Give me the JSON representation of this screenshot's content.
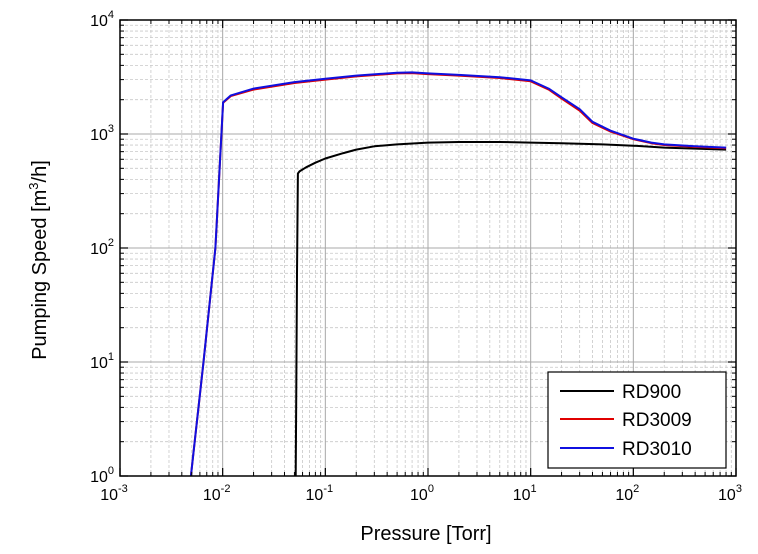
{
  "chart_data": {
    "type": "line",
    "xscale": "log",
    "yscale": "log",
    "xlabel": "Pressure [Torr]",
    "ylabel_parts": [
      "Pumping Speed [m",
      "3",
      "/h]"
    ],
    "xlim": [
      0.001,
      1000
    ],
    "ylim": [
      1,
      10000
    ],
    "x_ticks": [
      {
        "base": "10",
        "exp": "-3"
      },
      {
        "base": "10",
        "exp": "-2"
      },
      {
        "base": "10",
        "exp": "-1"
      },
      {
        "base": "10",
        "exp": "0"
      },
      {
        "base": "10",
        "exp": "1"
      },
      {
        "base": "10",
        "exp": "2"
      },
      {
        "base": "10",
        "exp": "3"
      }
    ],
    "y_ticks": [
      {
        "base": "10",
        "exp": "0"
      },
      {
        "base": "10",
        "exp": "1"
      },
      {
        "base": "10",
        "exp": "2"
      },
      {
        "base": "10",
        "exp": "3"
      },
      {
        "base": "10",
        "exp": "4"
      }
    ],
    "grid": true,
    "legend_position": "bottom-right",
    "series": [
      {
        "name": "RD900",
        "color": "#000000",
        "points": [
          [
            0.0515,
            1
          ],
          [
            0.0522,
            6
          ],
          [
            0.053,
            60
          ],
          [
            0.054,
            450
          ],
          [
            0.056,
            470
          ],
          [
            0.065,
            510
          ],
          [
            0.08,
            560
          ],
          [
            0.1,
            610
          ],
          [
            0.15,
            680
          ],
          [
            0.2,
            730
          ],
          [
            0.3,
            780
          ],
          [
            0.5,
            810
          ],
          [
            1,
            840
          ],
          [
            2,
            850
          ],
          [
            5,
            850
          ],
          [
            10,
            840
          ],
          [
            20,
            830
          ],
          [
            50,
            810
          ],
          [
            100,
            790
          ],
          [
            200,
            760
          ],
          [
            400,
            745
          ],
          [
            800,
            730
          ]
        ]
      },
      {
        "name": "RD3009",
        "color": "#e00000",
        "points": [
          [
            0.0049,
            1
          ],
          [
            0.0065,
            10
          ],
          [
            0.0085,
            100
          ],
          [
            0.0101,
            1880
          ],
          [
            0.012,
            2150
          ],
          [
            0.02,
            2450
          ],
          [
            0.05,
            2800
          ],
          [
            0.1,
            3000
          ],
          [
            0.2,
            3200
          ],
          [
            0.5,
            3400
          ],
          [
            0.7,
            3420
          ],
          [
            1,
            3350
          ],
          [
            2,
            3250
          ],
          [
            5,
            3100
          ],
          [
            10,
            2900
          ],
          [
            15,
            2450
          ],
          [
            20,
            2050
          ],
          [
            30,
            1600
          ],
          [
            40,
            1250
          ],
          [
            60,
            1050
          ],
          [
            100,
            900
          ],
          [
            150,
            830
          ],
          [
            200,
            800
          ],
          [
            400,
            770
          ],
          [
            800,
            750
          ]
        ]
      },
      {
        "name": "RD3010",
        "color": "#1010e0",
        "points": [
          [
            0.0049,
            1
          ],
          [
            0.0065,
            10
          ],
          [
            0.0085,
            100
          ],
          [
            0.0101,
            1900
          ],
          [
            0.012,
            2180
          ],
          [
            0.02,
            2500
          ],
          [
            0.05,
            2850
          ],
          [
            0.1,
            3050
          ],
          [
            0.2,
            3250
          ],
          [
            0.5,
            3450
          ],
          [
            0.7,
            3470
          ],
          [
            1,
            3400
          ],
          [
            2,
            3300
          ],
          [
            5,
            3150
          ],
          [
            10,
            2950
          ],
          [
            15,
            2500
          ],
          [
            20,
            2100
          ],
          [
            30,
            1650
          ],
          [
            40,
            1280
          ],
          [
            60,
            1070
          ],
          [
            100,
            910
          ],
          [
            150,
            840
          ],
          [
            200,
            810
          ],
          [
            400,
            780
          ],
          [
            800,
            760
          ]
        ]
      }
    ]
  }
}
